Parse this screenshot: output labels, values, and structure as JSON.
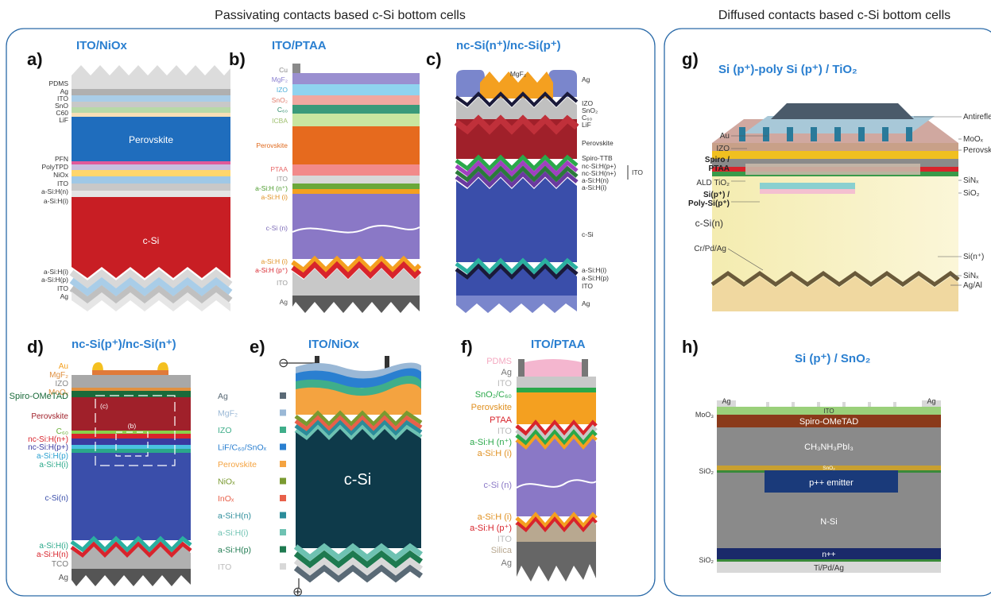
{
  "headers": {
    "left": "Passivating contacts based c-Si bottom cells",
    "right": "Diffused contacts based c-Si bottom cells"
  },
  "panels": {
    "a": {
      "letter": "a)",
      "title": "ITO/NiOx",
      "labels": [
        "PDMS",
        "Ag",
        "ITO",
        "SnO",
        "C60",
        "LiF",
        "PFN",
        "PolyTPD",
        "NiOx",
        "ITO",
        "a-Si:H(n)",
        "a-Si:H(i)",
        "a-Si:H(i)",
        "a-Si:H(p)",
        "ITO",
        "Ag"
      ],
      "perovskite": "Perovskite",
      "csi": "c-Si"
    },
    "b": {
      "letter": "b)",
      "title": "ITO/PTAA",
      "labels": [
        "Cu",
        "MgF₂",
        "IZO",
        "SnO₂",
        "C₆₀",
        "ICBA",
        "Perovskite",
        "PTAA",
        "ITO",
        "a-Si:H (n⁺)",
        "a-Si:H (i)",
        "c-Si (n)",
        "a-Si:H (i)",
        "a-Si:H (p⁺)",
        "ITO",
        "Ag"
      ]
    },
    "c": {
      "letter": "c)",
      "title": "nc-Si(n⁺)/nc-Si(p⁺)",
      "mgf2": "MgF₂",
      "labels": [
        "Ag",
        "IZO",
        "SnO₂",
        "C₆₀",
        "LiF",
        "Perovskite",
        "Spiro-TTB",
        "nc-Si:H(p+)",
        "nc-Si:H(n+)",
        "a-Si:H(n)",
        "a-Si:H(i)",
        "c-Si",
        "a-Si:H(i)",
        "a-Si:H(p)",
        "ITO",
        "Ag"
      ],
      "ito_bracket": "ITO"
    },
    "d": {
      "letter": "d)",
      "title": "nc-Si(p⁺)/nc-Si(n⁺)",
      "labels": [
        "Au",
        "MgF₂",
        "IZO",
        "MoOₓ",
        "Spiro-OMeTAD",
        "Perovskite",
        "C₆₀",
        "nc-Si:H(n+)",
        "nc-Si:H(p+)",
        "a-Si:H(p)",
        "a-Si:H(i)",
        "c-Si(n)",
        "a-Si:H(i)",
        "a-Si:H(n)",
        "TCO",
        "Ag"
      ],
      "inset_c": "(c)",
      "inset_b": "(b)"
    },
    "e": {
      "letter": "e)",
      "title": "ITO/NiOx",
      "csi": "c-Si",
      "minus": "⊖",
      "plus": "⊕",
      "legend": [
        {
          "label": "Ag",
          "color": "#5a6a76"
        },
        {
          "label": "MgF₂",
          "color": "#9ab8d6"
        },
        {
          "label": "IZO",
          "color": "#3fae8a"
        },
        {
          "label": "LiF/C₆₀/SnOₓ",
          "color": "#2a7fd0"
        },
        {
          "label": "Perovskite",
          "color": "#f4a340"
        },
        {
          "label": "NiOₓ",
          "color": "#7a9a30"
        },
        {
          "label": "InOₓ",
          "color": "#e8604a"
        },
        {
          "label": "a-Si:H(n)",
          "color": "#2b8c9a"
        },
        {
          "label": "a-Si:H(i)",
          "color": "#6ec2b2"
        },
        {
          "label": "a-Si:H(p)",
          "color": "#1e7a50"
        },
        {
          "label": "ITO",
          "color": "#d8d8d8"
        }
      ]
    },
    "f": {
      "letter": "f)",
      "title": "ITO/PTAA",
      "labels": [
        "PDMS",
        "Ag",
        "ITO",
        "SnO₂/C₆₀",
        "Perovskite",
        "PTAA",
        "ITO",
        "a-Si:H (n⁺)",
        "a-Si:H (i)",
        "c-Si (n)",
        "a-Si:H (i)",
        "a-Si:H (p⁺)",
        "ITO",
        "Silica",
        "Ag"
      ]
    },
    "g": {
      "letter": "g)",
      "title": "Si (p⁺)-poly Si (p⁺) / TiO₂",
      "left_labels": [
        "Au",
        "IZO",
        "Spiro /",
        "PTAA",
        "ALD TiO₂",
        "Si(p⁺) /",
        "Poly-Si(p⁺)",
        "c-Si(n)",
        "Cr/Pd/Ag"
      ],
      "right_labels": [
        "Antireflection foil",
        "MoOₓ",
        "Perovskite",
        "SiNₓ",
        "SiO₂",
        "Si(n⁺)",
        "SiNₓ",
        "Ag/Al"
      ]
    },
    "h": {
      "letter": "h)",
      "title": "Si (p⁺) / SnO₂",
      "ag_left": "Ag",
      "ag_right": "Ag",
      "layers": [
        "ITO",
        "Spiro-OMeTAD",
        "CH₃NH₃PbI₃",
        "SnO₂",
        "p++ emitter",
        "N-Si",
        "n++",
        "Ti/Pd/Ag"
      ],
      "side": [
        "MoO₃",
        "SiO₂",
        "SiO₂"
      ]
    }
  }
}
